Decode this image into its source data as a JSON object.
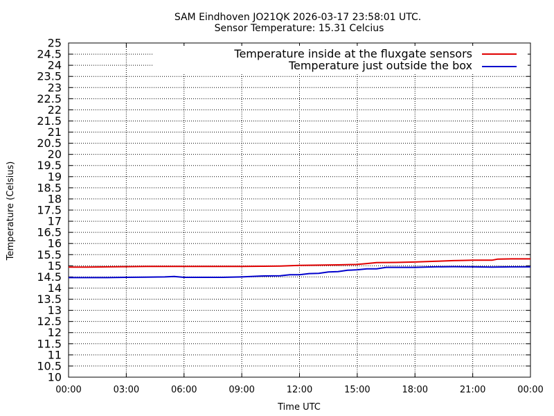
{
  "chart_data": {
    "type": "line",
    "title": "SAM Eindhoven JO21QK 2026-03-17 23:58:01 UTC.",
    "subtitle": "Sensor Temperature: 15.31 Celcius",
    "xlabel": "Time UTC",
    "ylabel": "Temperature (Celsius)",
    "xlim": [
      0,
      24
    ],
    "ylim": [
      10,
      25
    ],
    "grid": true,
    "legend_position": "top-right",
    "x_tick_labels": [
      "00:00",
      "03:00",
      "06:00",
      "09:00",
      "12:00",
      "15:00",
      "18:00",
      "21:00",
      "00:00"
    ],
    "y_tick_labels": [
      "10",
      "10.5",
      "11",
      "11.5",
      "12",
      "12.5",
      "13",
      "13.5",
      "14",
      "14.5",
      "15",
      "15.5",
      "16",
      "16.5",
      "17",
      "17.5",
      "18",
      "18.5",
      "19",
      "19.5",
      "20",
      "20.5",
      "21",
      "21.5",
      "22",
      "22.5",
      "23",
      "23.5",
      "24",
      "24.5",
      "25"
    ],
    "series": [
      {
        "name": "Temperature inside at the fluxgate sensors",
        "color": "#e00000",
        "x": [
          0,
          1,
          2,
          3,
          4,
          5,
          6,
          7,
          8,
          9,
          10,
          11,
          11.5,
          12,
          13,
          14,
          15,
          15.5,
          16,
          17,
          18,
          19,
          20,
          20.5,
          21,
          22,
          22.3,
          23,
          24
        ],
        "y": [
          14.94,
          14.94,
          14.95,
          14.96,
          14.97,
          14.97,
          14.97,
          14.97,
          14.97,
          14.97,
          14.98,
          14.99,
          15.0,
          15.02,
          15.03,
          15.04,
          15.06,
          15.1,
          15.14,
          15.15,
          15.17,
          15.2,
          15.23,
          15.24,
          15.25,
          15.25,
          15.3,
          15.31,
          15.31
        ]
      },
      {
        "name": "Temperature just outside the box",
        "color": "#0000cc",
        "x": [
          0,
          1,
          2,
          3,
          4,
          5,
          5.5,
          6,
          7,
          8,
          9,
          9.5,
          10,
          11,
          11.5,
          12,
          12.5,
          13,
          13.5,
          14,
          14.5,
          15,
          15.5,
          16,
          16.5,
          17,
          18,
          19,
          20,
          21,
          22,
          23,
          24
        ],
        "y": [
          14.47,
          14.47,
          14.47,
          14.48,
          14.49,
          14.5,
          14.52,
          14.48,
          14.48,
          14.48,
          14.5,
          14.52,
          14.54,
          14.55,
          14.6,
          14.6,
          14.65,
          14.66,
          14.72,
          14.74,
          14.8,
          14.82,
          14.86,
          14.86,
          14.93,
          14.93,
          14.93,
          14.95,
          14.96,
          14.95,
          14.94,
          14.95,
          14.95
        ]
      }
    ]
  }
}
